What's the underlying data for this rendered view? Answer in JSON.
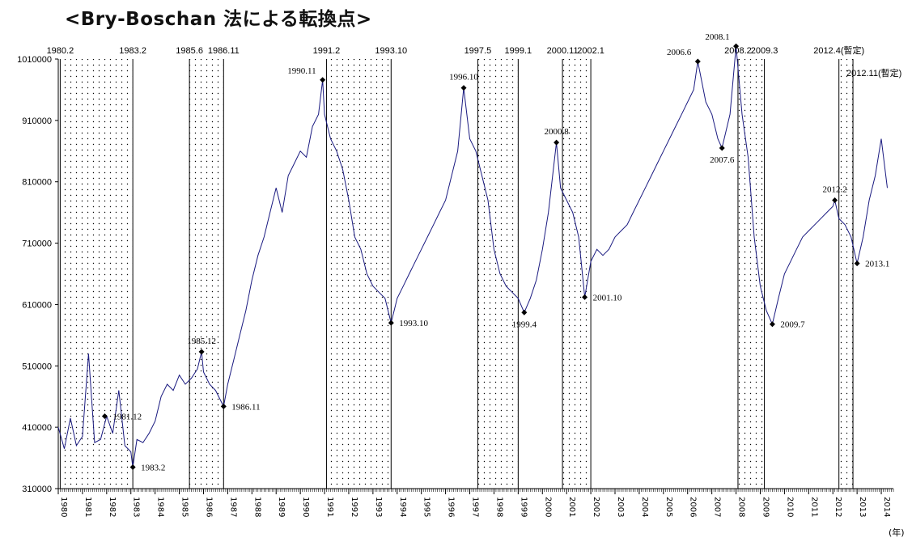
{
  "title": "<Bry-Boschan 法による転換点>",
  "x_unit": "(年)",
  "colors": {
    "series": "#1a1a80",
    "marker": "#000000",
    "shade_dot": "#000000"
  },
  "chart_data": {
    "type": "line",
    "title": "<Bry-Boschan 法による転換点>",
    "xlabel": "(年)",
    "ylabel": "",
    "xlim": [
      1980,
      2014.5
    ],
    "ylim": [
      310000,
      1010000
    ],
    "yticks": [
      310000,
      410000,
      510000,
      610000,
      710000,
      810000,
      910000,
      1010000
    ],
    "xticks": [
      "1980",
      "1981",
      "1982",
      "1983",
      "1984",
      "1985",
      "1986",
      "1987",
      "1988",
      "1989",
      "1990",
      "1991",
      "1992",
      "1993",
      "1994",
      "1995",
      "1996",
      "1997",
      "1998",
      "1999",
      "2000",
      "2001",
      "2002",
      "2003",
      "2004",
      "2005",
      "2006",
      "2007",
      "2008",
      "2009",
      "2010",
      "2011",
      "2012",
      "2013",
      "2014"
    ],
    "grid": false,
    "legend": "none",
    "turning_point_lines": [
      {
        "label": "1980.2",
        "x": 1980.08
      },
      {
        "label": "1983.2",
        "x": 1983.08
      },
      {
        "label": "1985.6",
        "x": 1985.42
      },
      {
        "label": "1986.11",
        "x": 1986.83
      },
      {
        "label": "1991.2",
        "x": 1991.08
      },
      {
        "label": "1993.10",
        "x": 1993.75
      },
      {
        "label": "1997.5",
        "x": 1997.33
      },
      {
        "label": "1999.1",
        "x": 1999.0
      },
      {
        "label": "2000.11",
        "x": 2000.83
      },
      {
        "label": "2002.1",
        "x": 2002.0
      },
      {
        "label": "2008.2",
        "x": 2008.08
      },
      {
        "label": "2009.3",
        "x": 2009.17
      },
      {
        "label": "2012.4(暫定)",
        "x": 2012.25
      },
      {
        "label": "2012.11(暫定)",
        "x": 2012.83
      }
    ],
    "shaded_periods": [
      [
        1980.08,
        1983.08
      ],
      [
        1985.42,
        1986.83
      ],
      [
        1991.08,
        1993.75
      ],
      [
        1997.33,
        1999.0
      ],
      [
        2000.83,
        2002.0
      ],
      [
        2008.08,
        2009.17
      ],
      [
        2012.25,
        2012.83
      ]
    ],
    "turning_points": [
      {
        "label": "1981.12",
        "x": 1981.92,
        "y": 428000,
        "pos": "right"
      },
      {
        "label": "1983.2",
        "x": 1983.08,
        "y": 345000,
        "pos": "right"
      },
      {
        "label": "1985.12",
        "x": 1985.92,
        "y": 533000,
        "pos": "above"
      },
      {
        "label": "1986.11",
        "x": 1986.83,
        "y": 444000,
        "pos": "right"
      },
      {
        "label": "1990.11",
        "x": 1990.92,
        "y": 976000,
        "pos": "left"
      },
      {
        "label": "1993.10",
        "x": 1993.75,
        "y": 580000,
        "pos": "right"
      },
      {
        "label": "1996.10",
        "x": 1996.75,
        "y": 963000,
        "pos": "above"
      },
      {
        "label": "1999.4",
        "x": 1999.25,
        "y": 597000,
        "pos": "below"
      },
      {
        "label": "2000.8",
        "x": 2000.58,
        "y": 874000,
        "pos": "above"
      },
      {
        "label": "2001.10",
        "x": 2001.75,
        "y": 622000,
        "pos": "right"
      },
      {
        "label": "2006.6",
        "x": 2006.42,
        "y": 1006000,
        "pos": "left"
      },
      {
        "label": "2007.6",
        "x": 2007.42,
        "y": 865000,
        "pos": "below"
      },
      {
        "label": "2008.1",
        "x": 2008.0,
        "y": 1031000,
        "pos": "left"
      },
      {
        "label": "2009.7",
        "x": 2009.5,
        "y": 578000,
        "pos": "right"
      },
      {
        "label": "2012.2",
        "x": 2012.08,
        "y": 780000,
        "pos": "above"
      },
      {
        "label": "2013.1",
        "x": 2013.0,
        "y": 677000,
        "pos": "right"
      }
    ],
    "series": [
      {
        "x": [
          1980.0,
          1980.25,
          1980.5,
          1980.75,
          1981.0,
          1981.25,
          1981.5,
          1981.75,
          1982.0,
          1982.25,
          1982.5,
          1982.75,
          1983.0,
          1983.08,
          1983.25,
          1983.5,
          1983.75,
          1984.0,
          1984.25,
          1984.5,
          1984.75,
          1985.0,
          1985.25,
          1985.5,
          1985.75,
          1985.92,
          1986.0,
          1986.25,
          1986.5,
          1986.83,
          1987.0,
          1987.25,
          1987.5,
          1987.75,
          1988.0,
          1988.25,
          1988.5,
          1988.75,
          1989.0,
          1989.25,
          1989.5,
          1989.75,
          1990.0,
          1990.25,
          1990.5,
          1990.75,
          1990.92,
          1991.0,
          1991.25,
          1991.5,
          1991.75,
          1992.0,
          1992.25,
          1992.5,
          1992.75,
          1993.0,
          1993.25,
          1993.5,
          1993.75,
          1994.0,
          1994.25,
          1994.5,
          1994.75,
          1995.0,
          1995.25,
          1995.5,
          1995.75,
          1996.0,
          1996.25,
          1996.5,
          1996.75,
          1997.0,
          1997.25,
          1997.5,
          1997.75,
          1998.0,
          1998.25,
          1998.5,
          1998.75,
          1999.0,
          1999.25,
          1999.5,
          1999.75,
          2000.0,
          2000.25,
          2000.58,
          2000.75,
          2001.0,
          2001.25,
          2001.5,
          2001.75,
          2002.0,
          2002.25,
          2002.5,
          2002.75,
          2003.0,
          2003.25,
          2003.5,
          2003.75,
          2004.0,
          2004.25,
          2004.5,
          2004.75,
          2005.0,
          2005.25,
          2005.5,
          2005.75,
          2006.0,
          2006.25,
          2006.42,
          2006.75,
          2007.0,
          2007.25,
          2007.42,
          2007.75,
          2008.0,
          2008.25,
          2008.5,
          2008.75,
          2009.0,
          2009.25,
          2009.5,
          2009.75,
          2010.0,
          2010.25,
          2010.5,
          2010.75,
          2011.0,
          2011.25,
          2011.5,
          2011.75,
          2012.0,
          2012.08,
          2012.25,
          2012.5,
          2012.75,
          2013.0,
          2013.25,
          2013.5,
          2013.75,
          2014.0,
          2014.25
        ],
        "values": [
          410000,
          375000,
          425000,
          380000,
          395000,
          530000,
          385000,
          390000,
          428000,
          400000,
          470000,
          380000,
          370000,
          345000,
          390000,
          385000,
          400000,
          420000,
          460000,
          480000,
          470000,
          495000,
          480000,
          490000,
          505000,
          533000,
          500000,
          480000,
          470000,
          444000,
          480000,
          520000,
          560000,
          600000,
          650000,
          690000,
          720000,
          760000,
          800000,
          760000,
          820000,
          840000,
          860000,
          850000,
          900000,
          920000,
          976000,
          920000,
          880000,
          860000,
          830000,
          780000,
          720000,
          700000,
          660000,
          640000,
          630000,
          620000,
          580000,
          620000,
          640000,
          660000,
          680000,
          700000,
          720000,
          740000,
          760000,
          780000,
          820000,
          860000,
          963000,
          880000,
          860000,
          820000,
          780000,
          700000,
          660000,
          640000,
          630000,
          620000,
          597000,
          620000,
          650000,
          700000,
          760000,
          874000,
          800000,
          780000,
          760000,
          720000,
          622000,
          680000,
          700000,
          690000,
          700000,
          720000,
          730000,
          740000,
          760000,
          780000,
          800000,
          820000,
          840000,
          860000,
          880000,
          900000,
          920000,
          940000,
          960000,
          1006000,
          940000,
          920000,
          880000,
          865000,
          920000,
          1031000,
          920000,
          850000,
          720000,
          640000,
          600000,
          578000,
          620000,
          660000,
          680000,
          700000,
          720000,
          730000,
          740000,
          750000,
          760000,
          770000,
          780000,
          750000,
          740000,
          720000,
          677000,
          720000,
          780000,
          820000,
          880000,
          800000
        ]
      }
    ]
  }
}
